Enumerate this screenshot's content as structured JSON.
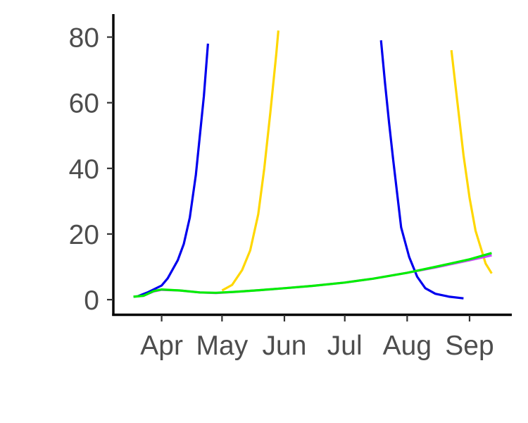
{
  "chart_data": {
    "type": "line",
    "title": "",
    "xlabel": "",
    "ylabel": "",
    "x_axis": {
      "type": "date",
      "domain": [
        "2020-03-08",
        "2020-09-22"
      ],
      "ticks": [
        {
          "date": "2020-04-01",
          "label": "Apr"
        },
        {
          "date": "2020-05-01",
          "label": "May"
        },
        {
          "date": "2020-06-01",
          "label": "Jun"
        },
        {
          "date": "2020-07-01",
          "label": "Jul"
        },
        {
          "date": "2020-08-01",
          "label": "Aug"
        },
        {
          "date": "2020-09-01",
          "label": "Sep"
        }
      ]
    },
    "y_axis": {
      "range": [
        -4.5,
        87
      ],
      "ticks": [
        0,
        20,
        40,
        60,
        80
      ]
    },
    "grid": false,
    "legend": "none",
    "series": [
      {
        "color": "#0000ee",
        "points": [
          [
            "2020-03-20",
            1.0
          ],
          [
            "2020-03-25",
            2.2
          ],
          [
            "2020-04-01",
            4.3
          ],
          [
            "2020-04-04",
            6.5
          ],
          [
            "2020-04-09",
            12.0
          ],
          [
            "2020-04-12",
            17.0
          ],
          [
            "2020-04-15",
            25.0
          ],
          [
            "2020-04-18",
            38.0
          ],
          [
            "2020-04-20",
            50.0
          ],
          [
            "2020-04-22",
            62.0
          ],
          [
            "2020-04-24",
            78.0
          ]
        ]
      },
      {
        "color": "#ffd700",
        "points": [
          [
            "2020-05-01",
            2.8
          ],
          [
            "2020-05-06",
            4.5
          ],
          [
            "2020-05-11",
            9.0
          ],
          [
            "2020-05-15",
            15.0
          ],
          [
            "2020-05-19",
            26.0
          ],
          [
            "2020-05-22",
            40.0
          ],
          [
            "2020-05-25",
            57.0
          ],
          [
            "2020-05-28",
            75.0
          ],
          [
            "2020-05-29",
            82.0
          ]
        ]
      },
      {
        "color": "#0000ee",
        "points": [
          [
            "2020-07-19",
            79.0
          ],
          [
            "2020-07-21",
            66.0
          ],
          [
            "2020-07-23",
            54.0
          ],
          [
            "2020-07-25",
            43.0
          ],
          [
            "2020-07-29",
            22.0
          ],
          [
            "2020-08-02",
            13.0
          ],
          [
            "2020-08-06",
            7.0
          ],
          [
            "2020-08-10",
            3.5
          ],
          [
            "2020-08-15",
            1.8
          ],
          [
            "2020-08-22",
            0.9
          ],
          [
            "2020-08-29",
            0.4
          ]
        ]
      },
      {
        "color": "#ffd700",
        "points": [
          [
            "2020-08-23",
            76.0
          ],
          [
            "2020-08-26",
            60.0
          ],
          [
            "2020-08-29",
            44.0
          ],
          [
            "2020-09-01",
            31.0
          ],
          [
            "2020-09-04",
            21.0
          ],
          [
            "2020-09-07",
            15.0
          ],
          [
            "2020-09-09",
            11.0
          ],
          [
            "2020-09-12",
            8.0
          ]
        ]
      },
      {
        "color": "#cc44ff",
        "points": [
          [
            "2020-03-18",
            0.9
          ],
          [
            "2020-03-23",
            1.2
          ],
          [
            "2020-03-28",
            2.5
          ],
          [
            "2020-04-01",
            3.0
          ],
          [
            "2020-04-10",
            2.8
          ],
          [
            "2020-04-20",
            2.2
          ],
          [
            "2020-04-28",
            2.0
          ],
          [
            "2020-05-08",
            2.4
          ],
          [
            "2020-05-20",
            2.9
          ],
          [
            "2020-06-01",
            3.5
          ],
          [
            "2020-06-15",
            4.2
          ],
          [
            "2020-07-01",
            5.2
          ],
          [
            "2020-07-15",
            6.4
          ],
          [
            "2020-08-01",
            8.2
          ],
          [
            "2020-08-15",
            9.8
          ],
          [
            "2020-09-01",
            12.0
          ],
          [
            "2020-09-12",
            13.5
          ]
        ]
      },
      {
        "color": "#00ee00",
        "points": [
          [
            "2020-03-18",
            0.9
          ],
          [
            "2020-03-23",
            1.2
          ],
          [
            "2020-03-28",
            2.6
          ],
          [
            "2020-04-01",
            3.1
          ],
          [
            "2020-04-10",
            2.8
          ],
          [
            "2020-04-20",
            2.2
          ],
          [
            "2020-04-28",
            2.1
          ],
          [
            "2020-05-08",
            2.4
          ],
          [
            "2020-05-20",
            2.9
          ],
          [
            "2020-06-01",
            3.5
          ],
          [
            "2020-06-15",
            4.2
          ],
          [
            "2020-07-01",
            5.2
          ],
          [
            "2020-07-15",
            6.4
          ],
          [
            "2020-08-01",
            8.2
          ],
          [
            "2020-08-15",
            10.0
          ],
          [
            "2020-09-01",
            12.3
          ],
          [
            "2020-09-12",
            14.2
          ]
        ]
      }
    ]
  }
}
